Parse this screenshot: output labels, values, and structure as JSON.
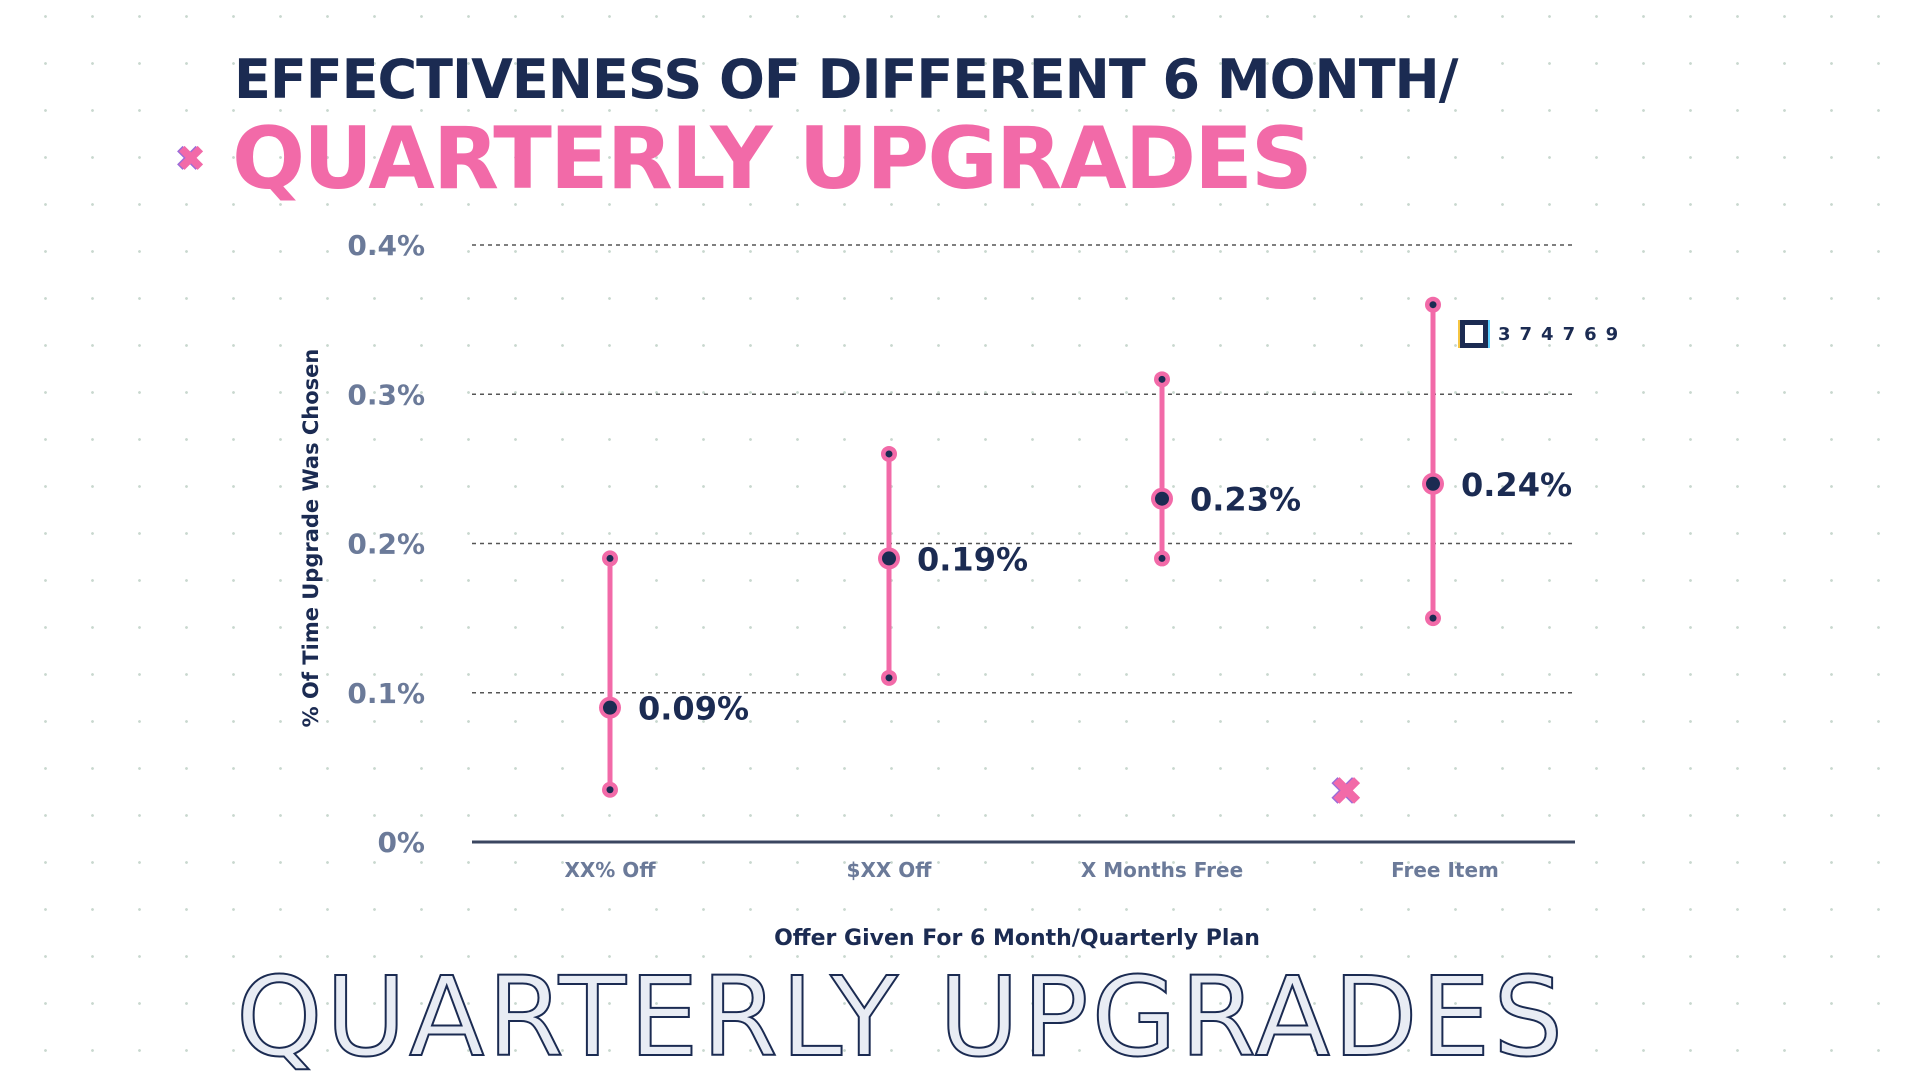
{
  "header": {
    "title_line1": "EFFECTIVENESS OF DIFFERENT 6 MONTH/",
    "title_line2": "QUARTERLY UPGRADES",
    "background_text": "QUARTERLY UPGRADES"
  },
  "badge": {
    "icon": "square-icon",
    "text": "374769"
  },
  "colors": {
    "navy": "#1b2b52",
    "pink": "#f26aa8",
    "tick": "#6b7a99"
  },
  "chart_data": {
    "type": "error-bar",
    "title": "EFFECTIVENESS OF DIFFERENT 6 MONTH/QUARTERLY UPGRADES",
    "xlabel": "Offer Given For 6 Month/Quarterly Plan",
    "ylabel": "% Of Time Upgrade Was Chosen",
    "ylim": [
      0,
      0.4
    ],
    "yticks": [
      0,
      0.1,
      0.2,
      0.3,
      0.4
    ],
    "ytick_labels": [
      "0%",
      "0.1%",
      "0.2%",
      "0.3%",
      "0.4%"
    ],
    "grid": "horizontal-dashed",
    "categories": [
      "XX% Off",
      "$XX Off",
      "X Months Free",
      "Free Item"
    ],
    "values": [
      0.09,
      0.19,
      0.23,
      0.24
    ],
    "value_labels": [
      "0.09%",
      "0.19%",
      "0.23%",
      "0.24%"
    ],
    "low": [
      0.035,
      0.11,
      0.19,
      0.15
    ],
    "high": [
      0.19,
      0.26,
      0.31,
      0.36
    ]
  }
}
